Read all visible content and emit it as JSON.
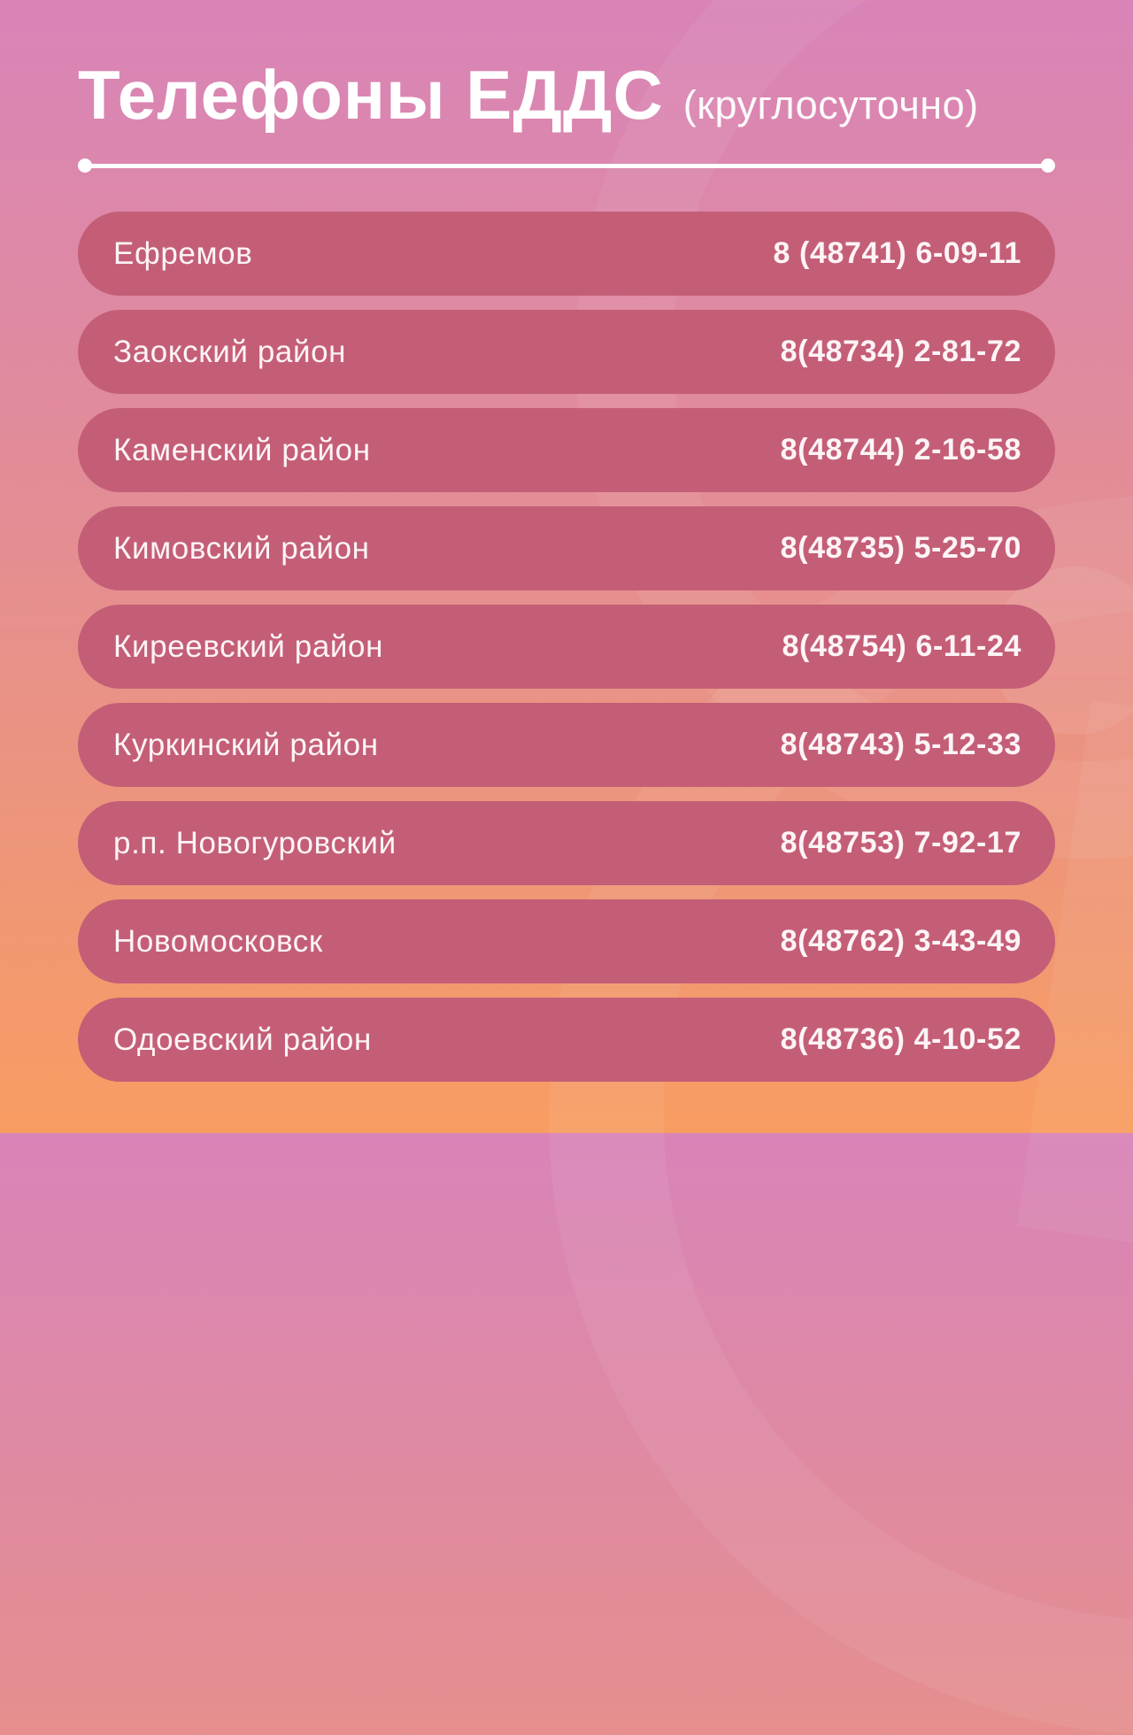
{
  "header": {
    "title": "Телефоны ЕДДС",
    "subtitle": "(круглосуточно)"
  },
  "rows": [
    {
      "name": "Ефремов",
      "phone": "8 (48741) 6-09-11"
    },
    {
      "name": "Заокский район",
      "phone": "8(48734) 2-81-72"
    },
    {
      "name": "Каменский район",
      "phone": "8(48744) 2-16-58"
    },
    {
      "name": "Кимовский район",
      "phone": "8(48735) 5-25-70"
    },
    {
      "name": "Киреевский район",
      "phone": "8(48754) 6-11-24"
    },
    {
      "name": "Куркинский район",
      "phone": "8(48743) 5-12-33"
    },
    {
      "name": "р.п. Новогуровский",
      "phone": "8(48753) 7-92-17"
    },
    {
      "name": "Новомосковск",
      "phone": "8(48762) 3-43-49"
    },
    {
      "name": "Одоевский район",
      "phone": "8(48736) 4-10-52"
    }
  ],
  "colors": {
    "bg_top": "#d884b8",
    "bg_bottom": "#f89d62",
    "pill": "#c45e77",
    "text": "#fdf4f6"
  }
}
